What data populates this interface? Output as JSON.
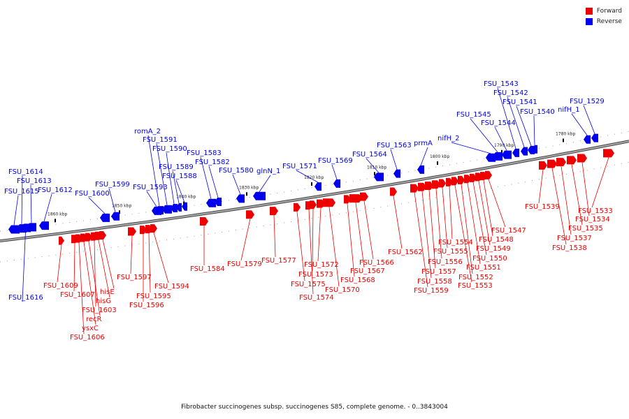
{
  "colors": {
    "forward": "#ee0000",
    "reverse": "#0000ee",
    "backbone": "#777777"
  },
  "legend": [
    {
      "label": "Forward",
      "color": "#ee0000"
    },
    {
      "label": "Reverse",
      "color": "#0000ee"
    }
  ],
  "caption": "Fibrobacter succinogenes subsp. succinogenes S85, complete genome. - 0..3843004",
  "scale_labels": [
    "1780 kbp",
    "1790 kbp",
    "1800 kbp",
    "1810 kbp",
    "1820 kbp",
    "1830 kbp",
    "1840 kbp",
    "1850 kbp",
    "1860 kbp"
  ],
  "genes": {
    "reverse": [
      "FSU_1616",
      "FSU_1615",
      "FSU_1614",
      "FSU_1613",
      "FSU_1612",
      "FSU_1600",
      "FSU_1599",
      "FSU_1593",
      "romA_2",
      "FSU_1591",
      "FSU_1590",
      "FSU_1589",
      "FSU_1588",
      "FSU_1583",
      "FSU_1582",
      "FSU_1580",
      "glnN_1",
      "FSU_1571",
      "FSU_1569",
      "FSU_1564",
      "FSU_1563",
      "prmA",
      "nifH_2",
      "FSU_1545",
      "FSU_1544",
      "FSU_1543",
      "FSU_1542",
      "FSU_1541",
      "FSU_1540",
      "nifH_1",
      "FSU_1529"
    ],
    "forward": [
      "FSU_1609",
      "FSU_1607",
      "FSU_1606",
      "ysxC",
      "recR",
      "FSU_1603",
      "hisG",
      "hisE",
      "FSU_1597",
      "FSU_1596",
      "FSU_1595",
      "FSU_1594",
      "FSU_1584",
      "FSU_1579",
      "FSU_1577",
      "FSU_1575",
      "FSU_1574",
      "FSU_1573",
      "FSU_1572",
      "FSU_1570",
      "FSU_1568",
      "FSU_1567",
      "FSU_1566",
      "FSU_1562",
      "FSU_1559",
      "FSU_1558",
      "FSU_1557",
      "FSU_1556",
      "FSU_1555",
      "FSU_1554",
      "FSU_1553",
      "FSU_1552",
      "FSU_1551",
      "FSU_1550",
      "FSU_1549",
      "FSU_1548",
      "FSU_1547",
      "FSU_1539",
      "FSU_1538",
      "FSU_1537",
      "FSU_1535",
      "FSU_1534",
      "FSU_1533"
    ]
  }
}
